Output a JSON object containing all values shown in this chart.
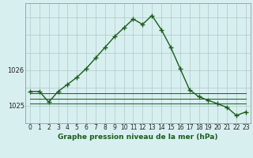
{
  "title": "Graphe pression niveau de la mer (hPa)",
  "hours": [
    0,
    1,
    2,
    3,
    4,
    5,
    6,
    7,
    8,
    9,
    10,
    11,
    12,
    13,
    14,
    15,
    16,
    17,
    18,
    19,
    20,
    21,
    22,
    23
  ],
  "main_line": [
    1025.4,
    1025.4,
    1025.1,
    1025.4,
    1025.6,
    1025.8,
    1026.05,
    1026.35,
    1026.65,
    1026.95,
    1027.2,
    1027.45,
    1027.3,
    1027.55,
    1027.15,
    1026.65,
    1026.05,
    1025.45,
    1025.25,
    1025.15,
    1025.05,
    1024.95,
    1024.72,
    1024.82
  ],
  "flat_line1": [
    1025.35,
    1025.35,
    1025.35,
    1025.35,
    1025.35,
    1025.35,
    1025.35,
    1025.35,
    1025.35,
    1025.35,
    1025.35,
    1025.35,
    1025.35,
    1025.35,
    1025.35,
    1025.35,
    1025.35,
    1025.35,
    1025.35,
    1025.35,
    1025.35,
    1025.35,
    1025.35,
    1025.35
  ],
  "flat_line2": [
    1025.2,
    1025.2,
    1025.2,
    1025.2,
    1025.2,
    1025.2,
    1025.2,
    1025.2,
    1025.2,
    1025.2,
    1025.2,
    1025.2,
    1025.2,
    1025.2,
    1025.2,
    1025.2,
    1025.2,
    1025.2,
    1025.2,
    1025.2,
    1025.2,
    1025.2,
    1025.2,
    1025.2
  ],
  "flat_line3": [
    1025.05,
    1025.05,
    1025.05,
    1025.05,
    1025.05,
    1025.05,
    1025.05,
    1025.05,
    1025.05,
    1025.05,
    1025.05,
    1025.05,
    1025.05,
    1025.05,
    1025.05,
    1025.05,
    1025.05,
    1025.05,
    1025.05,
    1025.05,
    1025.05,
    1025.05,
    1025.05,
    1025.05
  ],
  "line_color": "#1a5c1a",
  "bg_color": "#d8eff0",
  "grid_color": "#adc8c8",
  "ylim": [
    1024.5,
    1027.9
  ],
  "yticks": [
    1025,
    1026
  ],
  "marker": "+",
  "marker_size": 4,
  "linewidth": 1.0,
  "title_fontsize": 6.5,
  "tick_fontsize": 6
}
